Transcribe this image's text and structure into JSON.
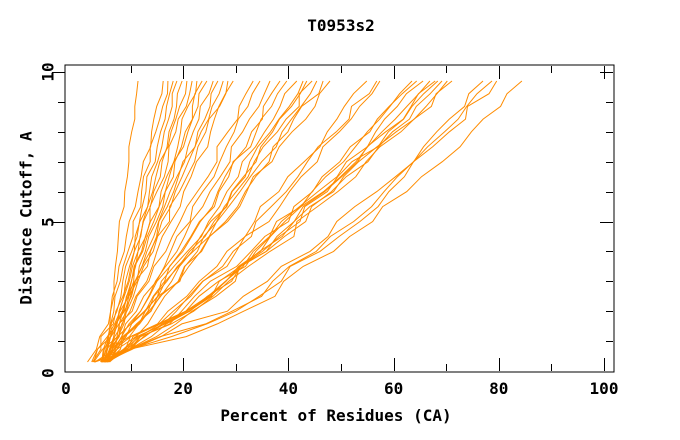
{
  "chart": {
    "title": "T0953s2",
    "x_axis": {
      "label": "Percent of Residues (CA)",
      "tick_labels": [
        "0",
        "20",
        "40",
        "60",
        "80",
        "100"
      ]
    },
    "y_axis": {
      "label": "Distance Cutoff, A",
      "tick_labels": [
        "0",
        "5",
        "10"
      ]
    },
    "colors": {
      "curve": "#ff8c00",
      "axis": "#000000",
      "text": "#000000",
      "background": "#ffffff"
    }
  },
  "chart_data": {
    "type": "line",
    "title": "T0953s2",
    "xlabel": "Percent of Residues (CA)",
    "ylabel": "Distance Cutoff, A",
    "xlim": [
      0,
      100
    ],
    "ylim": [
      0,
      10
    ],
    "xticks_major": [
      0,
      20,
      40,
      60,
      80,
      100
    ],
    "xticks_minor": [
      10,
      30,
      50,
      70,
      90
    ],
    "yticks_major": [
      0,
      5,
      10
    ],
    "yticks_minor": [
      1,
      2,
      3,
      4,
      6,
      7,
      8,
      9
    ],
    "grid": false,
    "legend": false,
    "cutoffs": [
      0.3,
      2,
      4,
      6,
      8,
      9.7
    ],
    "series": [
      [
        5.0,
        6.2,
        7.5,
        8.9,
        10.2,
        11.4
      ],
      [
        1.8,
        6.2,
        8.8,
        11.4,
        14.0,
        16.2
      ],
      [
        4.5,
        6.8,
        9.5,
        12.1,
        14.8,
        17.1
      ],
      [
        5.0,
        7.4,
        10.2,
        12.9,
        15.7,
        18.1
      ],
      [
        5.5,
        7.9,
        10.7,
        13.6,
        16.4,
        18.8
      ],
      [
        6.0,
        8.5,
        11.4,
        14.4,
        17.3,
        19.8
      ],
      [
        2.8,
        7.2,
        10.7,
        14.2,
        17.7,
        20.7
      ],
      [
        4.7,
        7.8,
        11.4,
        15.0,
        18.6,
        21.7
      ],
      [
        5.3,
        8.4,
        12.1,
        15.8,
        19.5,
        22.6
      ],
      [
        5.8,
        9.0,
        12.8,
        16.6,
        20.4,
        23.6
      ],
      [
        3.0,
        8.0,
        12.3,
        16.6,
        20.9,
        24.5
      ],
      [
        4.9,
        8.7,
        13.1,
        17.5,
        21.9,
        25.7
      ],
      [
        5.4,
        9.2,
        13.8,
        18.2,
        22.8,
        26.6
      ],
      [
        4.6,
        8.8,
        13.7,
        18.5,
        23.4,
        27.6
      ],
      [
        5.1,
        9.3,
        14.3,
        19.3,
        24.3,
        28.5
      ],
      [
        5.6,
        9.9,
        15.0,
        20.1,
        25.2,
        29.5
      ],
      [
        2.6,
        10.3,
        16.7,
        22.7,
        28.5,
        33.3
      ],
      [
        4.6,
        11.1,
        17.6,
        23.7,
        29.7,
        34.6
      ],
      [
        5.2,
        11.9,
        18.8,
        25.1,
        31.3,
        36.5
      ],
      [
        5.8,
        12.8,
        19.9,
        26.6,
        33.0,
        38.4
      ],
      [
        4.3,
        11.9,
        19.6,
        26.8,
        33.9,
        39.7
      ],
      [
        4.9,
        12.8,
        20.8,
        28.3,
        35.5,
        41.6
      ],
      [
        5.5,
        13.5,
        21.7,
        29.3,
        36.6,
        42.8
      ],
      [
        3.0,
        12.6,
        21.2,
        29.2,
        37.0,
        43.5
      ],
      [
        4.7,
        13.3,
        21.9,
        30.1,
        37.9,
        44.5
      ],
      [
        5.3,
        13.9,
        22.7,
        30.8,
        38.8,
        45.4
      ],
      [
        5.9,
        14.7,
        23.5,
        31.8,
        39.9,
        46.6
      ],
      [
        4.5,
        13.8,
        23.3,
        32.1,
        40.7,
        47.9
      ],
      [
        3.2,
        17.1,
        28.3,
        38.2,
        47.4,
        54.9
      ],
      [
        4.8,
        18.1,
        29.5,
        39.6,
        49.1,
        56.8
      ],
      [
        5.4,
        18.7,
        30.1,
        40.2,
        49.7,
        57.4
      ],
      [
        6.0,
        20.7,
        33.3,
        44.5,
        55.0,
        63.5
      ],
      [
        4.4,
        19.7,
        32.9,
        44.6,
        55.5,
        64.4
      ],
      [
        5.0,
        20.5,
        33.8,
        45.6,
        56.6,
        65.6
      ],
      [
        5.6,
        21.2,
        34.7,
        46.7,
        57.8,
        66.9
      ],
      [
        3.0,
        20.5,
        34.5,
        46.9,
        58.5,
        67.9
      ],
      [
        4.9,
        21.1,
        35.1,
        47.4,
        59.0,
        68.4
      ],
      [
        5.5,
        21.7,
        35.8,
        48.2,
        59.8,
        69.2
      ],
      [
        4.6,
        21.3,
        35.8,
        48.6,
        60.5,
        70.2
      ],
      [
        5.2,
        22.0,
        36.5,
        49.4,
        61.4,
        71.1
      ],
      [
        3.2,
        28.4,
        44.1,
        56.8,
        68.2,
        77.0
      ],
      [
        5.1,
        29.3,
        45.3,
        58.2,
        69.7,
        78.7
      ],
      [
        5.7,
        30.0,
        46.0,
        59.1,
        70.6,
        79.6
      ],
      [
        5.5,
        31.5,
        48.6,
        62.5,
        74.8,
        84.4
      ]
    ]
  }
}
